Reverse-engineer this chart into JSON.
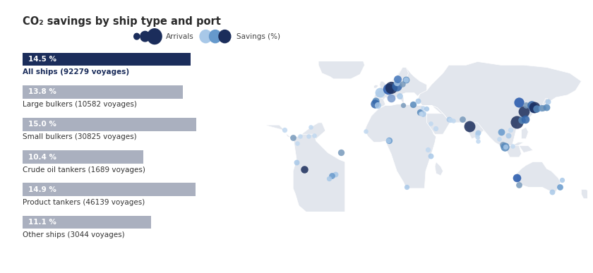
{
  "title": "CO₂ savings by ship type and port",
  "background_color": "#ffffff",
  "bar_data": [
    {
      "label": "All ships (92279 voyages)",
      "pct": 14.5,
      "highlight": true
    },
    {
      "label": "Large bulkers (10582 voyages)",
      "pct": 13.8,
      "highlight": false
    },
    {
      "label": "Small bulkers (30825 voyages)",
      "pct": 15.0,
      "highlight": false
    },
    {
      "label": "Crude oil tankers (1689 voyages)",
      "pct": 10.4,
      "highlight": false
    },
    {
      "label": "Product tankers (46139 voyages)",
      "pct": 14.9,
      "highlight": false
    },
    {
      "label": "Other ships (3044 voyages)",
      "pct": 11.1,
      "highlight": false
    }
  ],
  "bar_max_pct": 16.0,
  "highlight_bar_color": "#1b2d5b",
  "normal_bar_color": "#aab0bf",
  "highlight_label_color": "#1b2d5b",
  "normal_label_color": "#333333",
  "legend_arrivals_color": "#1b2d5b",
  "legend_savings_colors": [
    "#a8c8e8",
    "#6699cc",
    "#1b2d5b"
  ],
  "map_bg_color": "#ffffff",
  "land_color": "#e2e6ed",
  "land_edge_color": "#ffffff",
  "ports": [
    {
      "lon": -5.0,
      "lat": 48.5,
      "size": 40,
      "color": "#a8c8e8"
    },
    {
      "lon": -8.7,
      "lat": 41.2,
      "size": 22,
      "color": "#5588bb"
    },
    {
      "lon": -9.1,
      "lat": 38.7,
      "size": 32,
      "color": "#3366aa"
    },
    {
      "lon": -6.9,
      "lat": 37.0,
      "size": 18,
      "color": "#a8c8e8"
    },
    {
      "lon": 2.3,
      "lat": 51.3,
      "size": 50,
      "color": "#2255aa"
    },
    {
      "lon": 4.9,
      "lat": 52.4,
      "size": 62,
      "color": "#1b2d5b"
    },
    {
      "lon": 9.9,
      "lat": 53.5,
      "size": 42,
      "color": "#3366aa"
    },
    {
      "lon": 10.0,
      "lat": 57.0,
      "size": 18,
      "color": "#a8c8e8"
    },
    {
      "lon": 14.5,
      "lat": 55.5,
      "size": 15,
      "color": "#7799bb"
    },
    {
      "lon": 18.0,
      "lat": 59.3,
      "size": 20,
      "color": "#5588bb"
    },
    {
      "lon": 10.7,
      "lat": 59.9,
      "size": 25,
      "color": "#4477bb"
    },
    {
      "lon": 5.3,
      "lat": 43.3,
      "size": 28,
      "color": "#7799cc"
    },
    {
      "lon": 12.3,
      "lat": 45.4,
      "size": 16,
      "color": "#a8c8e8"
    },
    {
      "lon": 15.2,
      "lat": 37.1,
      "size": 11,
      "color": "#7799bb"
    },
    {
      "lon": 23.7,
      "lat": 37.9,
      "size": 18,
      "color": "#5588bb"
    },
    {
      "lon": 28.0,
      "lat": 41.0,
      "size": 13,
      "color": "#a8c8e8"
    },
    {
      "lon": 30.0,
      "lat": 31.2,
      "size": 18,
      "color": "#5588bb"
    },
    {
      "lon": 32.5,
      "lat": 29.9,
      "size": 16,
      "color": "#a8c8e8"
    },
    {
      "lon": 32.3,
      "lat": 35.0,
      "size": 9,
      "color": "#c0d8f0"
    },
    {
      "lon": 35.5,
      "lat": 33.9,
      "size": 11,
      "color": "#a8c8e8"
    },
    {
      "lon": 43.6,
      "lat": 16.9,
      "size": 11,
      "color": "#c0d8f0"
    },
    {
      "lon": 39.1,
      "lat": 21.5,
      "size": 9,
      "color": "#c0d8f0"
    },
    {
      "lon": 55.3,
      "lat": 25.3,
      "size": 13,
      "color": "#a8c8e8"
    },
    {
      "lon": 56.4,
      "lat": 24.5,
      "size": 11,
      "color": "#c0d8f0"
    },
    {
      "lon": 58.6,
      "lat": 23.6,
      "size": 9,
      "color": "#c0d8f0"
    },
    {
      "lon": 66.9,
      "lat": 24.9,
      "size": 16,
      "color": "#7799bb"
    },
    {
      "lon": 72.8,
      "lat": 19.1,
      "size": 52,
      "color": "#1b2d5b"
    },
    {
      "lon": 79.8,
      "lat": 11.9,
      "size": 11,
      "color": "#c0d8f0"
    },
    {
      "lon": 80.3,
      "lat": 13.1,
      "size": 13,
      "color": "#a8c8e8"
    },
    {
      "lon": 80.1,
      "lat": 6.0,
      "size": 9,
      "color": "#c0d8f0"
    },
    {
      "lon": 79.9,
      "lat": 9.7,
      "size": 9,
      "color": "#c0d8f0"
    },
    {
      "lon": 98.4,
      "lat": 7.9,
      "size": 9,
      "color": "#c0d8f0"
    },
    {
      "lon": 100.6,
      "lat": 13.8,
      "size": 20,
      "color": "#6699cc"
    },
    {
      "lon": 101.7,
      "lat": 3.1,
      "size": 16,
      "color": "#7799bb"
    },
    {
      "lon": 103.8,
      "lat": 1.4,
      "size": 32,
      "color": "#5588bb"
    },
    {
      "lon": 104.1,
      "lat": 1.0,
      "size": 11,
      "color": "#a8c8e8"
    },
    {
      "lon": 106.7,
      "lat": 10.8,
      "size": 13,
      "color": "#a8c8e8"
    },
    {
      "lon": 108.2,
      "lat": 16.1,
      "size": 11,
      "color": "#c0d8f0"
    },
    {
      "lon": 110.3,
      "lat": 1.6,
      "size": 9,
      "color": "#c0d8f0"
    },
    {
      "lon": 114.2,
      "lat": 22.3,
      "size": 68,
      "color": "#1b2d5b"
    },
    {
      "lon": 116.0,
      "lat": 39.9,
      "size": 42,
      "color": "#2255aa"
    },
    {
      "lon": 118.1,
      "lat": 24.5,
      "size": 23,
      "color": "#5588bb"
    },
    {
      "lon": 120.3,
      "lat": 31.5,
      "size": 52,
      "color": "#1b2d5b"
    },
    {
      "lon": 121.5,
      "lat": 25.0,
      "size": 28,
      "color": "#3366aa"
    },
    {
      "lon": 121.9,
      "lat": 37.5,
      "size": 16,
      "color": "#7799bb"
    },
    {
      "lon": 126.6,
      "lat": 37.5,
      "size": 33,
      "color": "#3366aa"
    },
    {
      "lon": 128.7,
      "lat": 35.1,
      "size": 38,
      "color": "#2255aa"
    },
    {
      "lon": 129.1,
      "lat": 35.2,
      "size": 52,
      "color": "#1b2d5b"
    },
    {
      "lon": 130.9,
      "lat": 33.9,
      "size": 23,
      "color": "#5588bb"
    },
    {
      "lon": 135.5,
      "lat": 34.7,
      "size": 18,
      "color": "#6699cc"
    },
    {
      "lon": 136.9,
      "lat": 35.1,
      "size": 16,
      "color": "#7799bb"
    },
    {
      "lon": 139.7,
      "lat": 35.7,
      "size": 20,
      "color": "#5588bb"
    },
    {
      "lon": 141.0,
      "lat": 40.5,
      "size": 13,
      "color": "#a8c8e8"
    },
    {
      "lon": 113.9,
      "lat": -25.9,
      "size": 28,
      "color": "#2255aa"
    },
    {
      "lon": 115.9,
      "lat": -31.9,
      "size": 16,
      "color": "#7799bb"
    },
    {
      "lon": 151.2,
      "lat": -33.8,
      "size": 16,
      "color": "#6699cc"
    },
    {
      "lon": 153.0,
      "lat": -27.5,
      "size": 11,
      "color": "#a8c8e8"
    },
    {
      "lon": 144.9,
      "lat": -37.8,
      "size": 13,
      "color": "#a8c8e8"
    },
    {
      "lon": -38.5,
      "lat": -3.7,
      "size": 18,
      "color": "#7799bb"
    },
    {
      "lon": -43.2,
      "lat": -22.9,
      "size": 13,
      "color": "#a8c8e8"
    },
    {
      "lon": -46.3,
      "lat": -23.9,
      "size": 16,
      "color": "#6699cc"
    },
    {
      "lon": -48.6,
      "lat": -26.2,
      "size": 11,
      "color": "#a8c8e8"
    },
    {
      "lon": -70.1,
      "lat": -18.5,
      "size": 23,
      "color": "#1b2d5b"
    },
    {
      "lon": -77.1,
      "lat": -12.1,
      "size": 13,
      "color": "#a8c8e8"
    },
    {
      "lon": -76.3,
      "lat": 3.9,
      "size": 9,
      "color": "#c0d8f0"
    },
    {
      "lon": -79.9,
      "lat": 9.0,
      "size": 16,
      "color": "#7799bb"
    },
    {
      "lon": -87.2,
      "lat": 15.8,
      "size": 11,
      "color": "#c0d8f0"
    },
    {
      "lon": -74.0,
      "lat": 10.4,
      "size": 9,
      "color": "#c0d8f0"
    },
    {
      "lon": -66.9,
      "lat": 10.6,
      "size": 9,
      "color": "#c0d8f0"
    },
    {
      "lon": -61.5,
      "lat": 10.7,
      "size": 9,
      "color": "#c0d8f0"
    },
    {
      "lon": -64.7,
      "lat": 18.4,
      "size": 9,
      "color": "#c0d8f0"
    },
    {
      "lon": 3.3,
      "lat": 6.4,
      "size": 18,
      "color": "#6699cc"
    },
    {
      "lon": 2.6,
      "lat": 6.6,
      "size": 11,
      "color": "#a8c8e8"
    },
    {
      "lon": -16.9,
      "lat": 14.7,
      "size": 9,
      "color": "#c0d8f0"
    },
    {
      "lon": 39.3,
      "lat": -6.8,
      "size": 13,
      "color": "#a8c8e8"
    },
    {
      "lon": 36.8,
      "lat": -1.3,
      "size": 11,
      "color": "#c0d8f0"
    },
    {
      "lon": 18.4,
      "lat": -33.9,
      "size": 11,
      "color": "#a8c8e8"
    },
    {
      "lon": 31.0,
      "lat": 29.9,
      "size": 9,
      "color": "#c0d8f0"
    },
    {
      "lon": 17.9,
      "lat": 59.3,
      "size": 13,
      "color": "#a8c8e8"
    }
  ],
  "map_xlim": [
    -110,
    175
  ],
  "map_ylim": [
    -55,
    75
  ]
}
